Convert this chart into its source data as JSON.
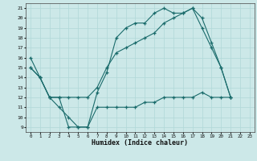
{
  "xlabel": "Humidex (Indice chaleur)",
  "bg_color": "#cce8e8",
  "grid_color": "#b0d8d8",
  "line_color": "#1a6b6b",
  "xlim": [
    -0.5,
    23.5
  ],
  "ylim": [
    8.5,
    21.5
  ],
  "xticks": [
    0,
    1,
    2,
    3,
    4,
    5,
    6,
    7,
    8,
    9,
    10,
    11,
    12,
    13,
    14,
    15,
    16,
    17,
    18,
    19,
    20,
    21,
    22,
    23
  ],
  "yticks": [
    9,
    10,
    11,
    12,
    13,
    14,
    15,
    16,
    17,
    18,
    19,
    20,
    21
  ],
  "line1_x": [
    0,
    1,
    2,
    3,
    4,
    5,
    6,
    7,
    8,
    9,
    10,
    11,
    12,
    13,
    14,
    15,
    16,
    17,
    18,
    19,
    20,
    21
  ],
  "line1_y": [
    16,
    14,
    12,
    12,
    9,
    9,
    9,
    12.5,
    14.5,
    18,
    19,
    19.5,
    19.5,
    20.5,
    21,
    20.5,
    20.5,
    21,
    20,
    17.5,
    15,
    12
  ],
  "line2_x": [
    0,
    1,
    2,
    3,
    4,
    5,
    6,
    7,
    8,
    9,
    10,
    11,
    12,
    13,
    14,
    15,
    16,
    17,
    18,
    19,
    20,
    21
  ],
  "line2_y": [
    15,
    14,
    12,
    12,
    12,
    12,
    12,
    13,
    15,
    16.5,
    17,
    17.5,
    18,
    18.5,
    19.5,
    20,
    20.5,
    21,
    19,
    17,
    15,
    12
  ],
  "line3_x": [
    0,
    1,
    2,
    3,
    4,
    5,
    6,
    7,
    8,
    9,
    10,
    11,
    12,
    13,
    14,
    15,
    16,
    17,
    18,
    19,
    20,
    21
  ],
  "line3_y": [
    15,
    14,
    12,
    11,
    10,
    9,
    9,
    11,
    11,
    11,
    11,
    11,
    11.5,
    11.5,
    12,
    12,
    12,
    12,
    12.5,
    12,
    12,
    12
  ]
}
